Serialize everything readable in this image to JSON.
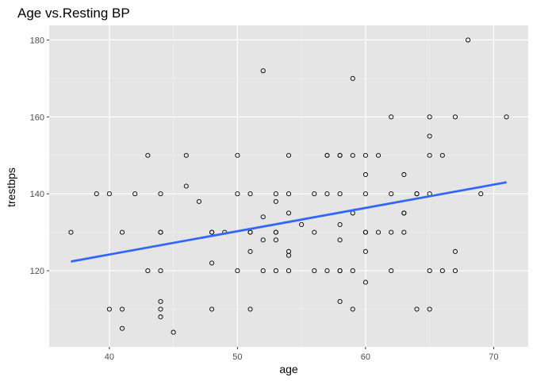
{
  "chart_data": {
    "type": "scatter",
    "title": "Age vs.Resting BP",
    "xlabel": "age",
    "ylabel": "trestbps",
    "xlim": [
      35.3,
      72.7
    ],
    "ylim": [
      100.2,
      183.8
    ],
    "x_ticks": [
      40,
      50,
      60,
      70
    ],
    "y_ticks": [
      120,
      140,
      160,
      180
    ],
    "x_minor": [
      35,
      45,
      55,
      65
    ],
    "y_minor": [
      110,
      130,
      150,
      170
    ],
    "grid": true,
    "background": "#e5e5e5",
    "point_color": "#000000",
    "trend_line": {
      "x": [
        37,
        71
      ],
      "y": [
        122.4,
        143.0
      ],
      "color": "#3366ff"
    },
    "points": [
      [
        37,
        130
      ],
      [
        39,
        140
      ],
      [
        40,
        140
      ],
      [
        40,
        110
      ],
      [
        41,
        130
      ],
      [
        41,
        110
      ],
      [
        41,
        105
      ],
      [
        42,
        140
      ],
      [
        43,
        150
      ],
      [
        43,
        120
      ],
      [
        44,
        140
      ],
      [
        44,
        130
      ],
      [
        44,
        130
      ],
      [
        44,
        120
      ],
      [
        44,
        112
      ],
      [
        44,
        110
      ],
      [
        44,
        108
      ],
      [
        45,
        104
      ],
      [
        46,
        150
      ],
      [
        46,
        142
      ],
      [
        47,
        138
      ],
      [
        48,
        130
      ],
      [
        48,
        130
      ],
      [
        48,
        122
      ],
      [
        48,
        110
      ],
      [
        49,
        130
      ],
      [
        50,
        150
      ],
      [
        50,
        140
      ],
      [
        50,
        120
      ],
      [
        51,
        140
      ],
      [
        51,
        130
      ],
      [
        51,
        130
      ],
      [
        51,
        125
      ],
      [
        51,
        110
      ],
      [
        52,
        172
      ],
      [
        52,
        134
      ],
      [
        52,
        128
      ],
      [
        52,
        120
      ],
      [
        53,
        140
      ],
      [
        53,
        138
      ],
      [
        53,
        130
      ],
      [
        53,
        130
      ],
      [
        53,
        128
      ],
      [
        53,
        120
      ],
      [
        54,
        150
      ],
      [
        54,
        140
      ],
      [
        54,
        135
      ],
      [
        54,
        125
      ],
      [
        54,
        124
      ],
      [
        54,
        120
      ],
      [
        55,
        132
      ],
      [
        56,
        140
      ],
      [
        56,
        130
      ],
      [
        56,
        120
      ],
      [
        57,
        150
      ],
      [
        57,
        150
      ],
      [
        57,
        140
      ],
      [
        57,
        120
      ],
      [
        58,
        150
      ],
      [
        58,
        150
      ],
      [
        58,
        140
      ],
      [
        58,
        132
      ],
      [
        58,
        128
      ],
      [
        58,
        120
      ],
      [
        58,
        120
      ],
      [
        58,
        112
      ],
      [
        59,
        170
      ],
      [
        59,
        150
      ],
      [
        59,
        135
      ],
      [
        59,
        120
      ],
      [
        59,
        110
      ],
      [
        60,
        150
      ],
      [
        60,
        145
      ],
      [
        60,
        140
      ],
      [
        60,
        130
      ],
      [
        60,
        130
      ],
      [
        60,
        125
      ],
      [
        60,
        117
      ],
      [
        61,
        150
      ],
      [
        61,
        130
      ],
      [
        62,
        160
      ],
      [
        62,
        140
      ],
      [
        62,
        130
      ],
      [
        62,
        120
      ],
      [
        63,
        145
      ],
      [
        63,
        135
      ],
      [
        63,
        135
      ],
      [
        63,
        130
      ],
      [
        64,
        140
      ],
      [
        64,
        140
      ],
      [
        64,
        110
      ],
      [
        65,
        160
      ],
      [
        65,
        155
      ],
      [
        65,
        150
      ],
      [
        65,
        140
      ],
      [
        65,
        120
      ],
      [
        65,
        110
      ],
      [
        66,
        150
      ],
      [
        66,
        120
      ],
      [
        67,
        160
      ],
      [
        67,
        125
      ],
      [
        67,
        120
      ],
      [
        68,
        180
      ],
      [
        69,
        140
      ],
      [
        71,
        160
      ]
    ]
  }
}
